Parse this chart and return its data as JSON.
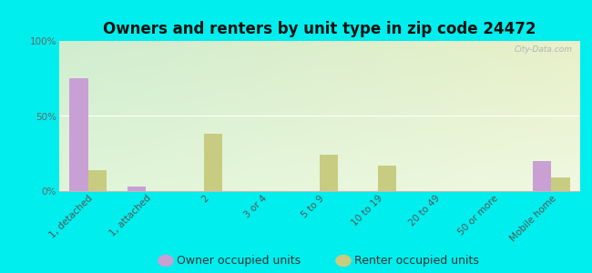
{
  "title": "Owners and renters by unit type in zip code 24472",
  "categories": [
    "1, detached",
    "1, attached",
    "2",
    "3 or 4",
    "5 to 9",
    "10 to 19",
    "20 to 49",
    "50 or more",
    "Mobile home"
  ],
  "owner_values": [
    75,
    3,
    0,
    0,
    0,
    0,
    0,
    0,
    20
  ],
  "renter_values": [
    14,
    0,
    38,
    0,
    24,
    17,
    0,
    0,
    9
  ],
  "owner_color": "#c8a0d4",
  "renter_color": "#c8cc80",
  "background_color": "#00eeee",
  "plot_bg_topleft": "#d8eed8",
  "plot_bg_topright": "#e8f0d0",
  "plot_bg_bottom": "#eef8e0",
  "ylabel_ticks": [
    "0%",
    "50%",
    "100%"
  ],
  "ytick_vals": [
    0,
    50,
    100
  ],
  "ylim": [
    0,
    100
  ],
  "bar_width": 0.32,
  "legend_owner": "Owner occupied units",
  "legend_renter": "Renter occupied units",
  "watermark": "City-Data.com",
  "title_fontsize": 12,
  "tick_fontsize": 7.5,
  "legend_fontsize": 9
}
